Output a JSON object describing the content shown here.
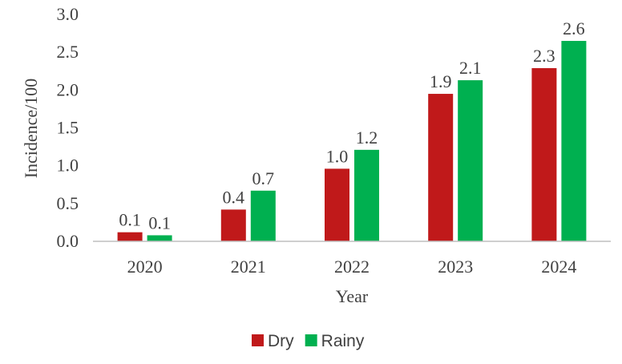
{
  "chart_data": {
    "type": "bar",
    "categories": [
      "2020",
      "2021",
      "2022",
      "2023",
      "2024"
    ],
    "series": [
      {
        "name": "Dry",
        "color": "#C0191A",
        "values": [
          0.12,
          0.42,
          0.96,
          1.95,
          2.29
        ],
        "labels": [
          "0.1",
          "0.4",
          "1.0",
          "1.9",
          "2.3"
        ]
      },
      {
        "name": "Rainy",
        "color": "#00B050",
        "values": [
          0.08,
          0.67,
          1.21,
          2.13,
          2.65
        ],
        "labels": [
          "0.1",
          "0.7",
          "1.2",
          "2.1",
          "2.6"
        ]
      }
    ],
    "xlabel": "Year",
    "ylabel": "Incidence/100",
    "ylim": [
      0,
      3.0
    ],
    "yticks": [
      "0.0",
      "0.5",
      "1.0",
      "1.5",
      "2.0",
      "2.5",
      "3.0"
    ],
    "grid": false,
    "legend": "bottom"
  }
}
